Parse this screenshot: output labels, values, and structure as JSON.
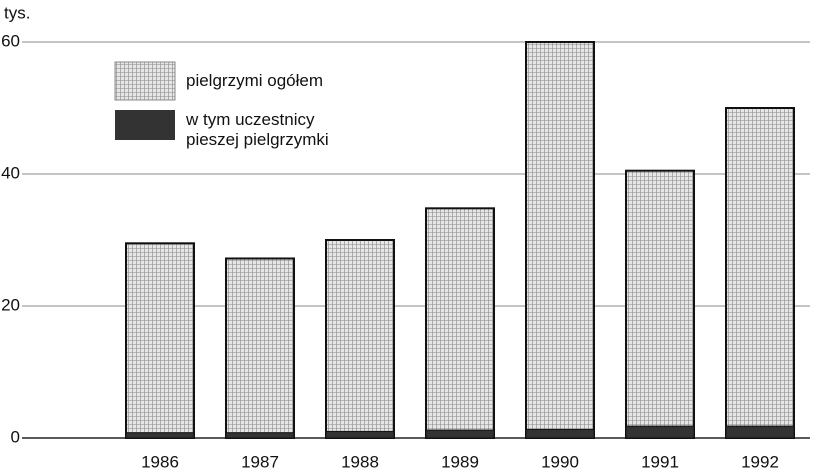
{
  "chart_data": {
    "type": "bar",
    "y_label": "tys.",
    "categories": [
      "1986",
      "1987",
      "1988",
      "1989",
      "1990",
      "1991",
      "1992"
    ],
    "series": [
      {
        "name": "pielgrzymi ogółem",
        "color": "#e6e6e6",
        "values": [
          29.5,
          27.2,
          30,
          34.8,
          60,
          40.5,
          50
        ]
      },
      {
        "name": "w tym uczestnicy pieszej pielgrzymki",
        "color": "#333333",
        "values": [
          0.8,
          0.8,
          1,
          1.2,
          1.3,
          1.8,
          1.8
        ]
      }
    ],
    "ylim": [
      0,
      60
    ],
    "yticks": [
      0,
      20,
      40,
      60
    ],
    "grid": true,
    "legend": "upper left"
  }
}
